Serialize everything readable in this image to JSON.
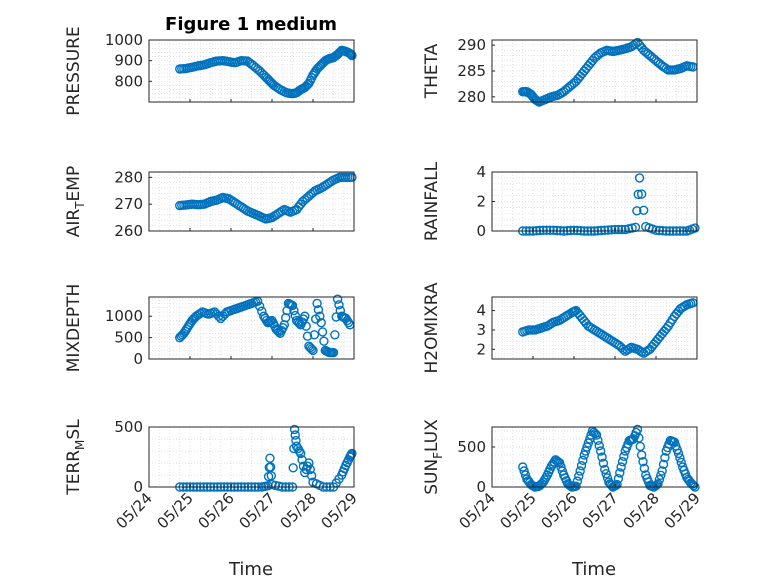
{
  "title": "Figure 1 medium",
  "marker_color": "#0072BD",
  "xlabel": "Time",
  "chart_data": [
    {
      "type": "scatter",
      "ylabel": "PRESSURE",
      "ylim": [
        700,
        1000
      ],
      "yticks": [
        800,
        900,
        1000
      ],
      "xlim": [
        0,
        5
      ],
      "x": [
        0.75,
        0.9,
        1.05,
        1.2,
        1.35,
        1.5,
        1.65,
        1.8,
        1.95,
        2.1,
        2.25,
        2.4,
        2.55,
        2.7,
        2.85,
        2.95,
        3.05,
        3.2,
        3.35,
        3.5,
        3.6,
        3.7,
        3.8,
        3.9,
        4.0,
        4.1,
        4.2,
        4.3,
        4.4,
        4.5,
        4.6,
        4.7,
        4.8,
        4.9,
        4.95
      ],
      "y": [
        860,
        862,
        868,
        875,
        880,
        890,
        898,
        900,
        895,
        890,
        900,
        898,
        875,
        850,
        820,
        800,
        780,
        760,
        745,
        740,
        745,
        760,
        770,
        790,
        830,
        860,
        880,
        900,
        910,
        915,
        930,
        950,
        945,
        935,
        925
      ]
    },
    {
      "type": "scatter",
      "ylabel": "THETA",
      "ylim": [
        279,
        291
      ],
      "yticks": [
        280,
        285,
        290
      ],
      "xlim": [
        0,
        5
      ],
      "x": [
        0.75,
        0.85,
        0.95,
        1.05,
        1.15,
        1.3,
        1.45,
        1.6,
        1.75,
        1.9,
        2.05,
        2.2,
        2.35,
        2.5,
        2.65,
        2.8,
        2.95,
        3.1,
        3.25,
        3.4,
        3.55,
        3.7,
        3.85,
        4.0,
        4.15,
        4.3,
        4.45,
        4.6,
        4.75,
        4.9
      ],
      "y": [
        281,
        281,
        280.5,
        279.5,
        279,
        279.5,
        280,
        280.3,
        281,
        282,
        283,
        284.5,
        286,
        287.5,
        288.5,
        289,
        288.8,
        289,
        289.3,
        289.7,
        290.5,
        289,
        288,
        287,
        286,
        285.2,
        285.2,
        285.5,
        286,
        285.8
      ]
    },
    {
      "type": "scatter",
      "ylabel": "AIR_TEMP",
      "ylim": [
        260,
        282
      ],
      "yticks": [
        260,
        270,
        280
      ],
      "xlim": [
        0,
        5
      ],
      "x": [
        0.75,
        0.9,
        1.05,
        1.2,
        1.35,
        1.5,
        1.65,
        1.8,
        1.95,
        2.1,
        2.25,
        2.4,
        2.55,
        2.7,
        2.85,
        3.0,
        3.15,
        3.3,
        3.45,
        3.6,
        3.75,
        3.9,
        4.05,
        4.2,
        4.35,
        4.5,
        4.65,
        4.8,
        4.95
      ],
      "y": [
        269.5,
        269.7,
        270,
        269.8,
        270,
        271,
        271.5,
        272.5,
        272,
        270.5,
        269,
        267.5,
        266.5,
        265.5,
        264.5,
        265,
        266.5,
        268,
        267,
        268,
        271,
        273,
        275,
        276,
        277.5,
        279,
        280,
        280,
        280
      ]
    },
    {
      "type": "scatter",
      "ylabel": "RAINFALL",
      "ylim": [
        0,
        4
      ],
      "yticks": [
        0,
        2,
        4
      ],
      "xlim": [
        0,
        5
      ],
      "x": [
        0.75,
        1.0,
        1.25,
        1.5,
        1.75,
        2.0,
        2.25,
        2.5,
        2.75,
        3.0,
        3.25,
        3.5,
        3.6,
        3.75,
        4.0,
        4.25,
        4.5,
        4.75,
        4.95
      ],
      "y": [
        0,
        0,
        0.05,
        0.05,
        0,
        0.05,
        0,
        0,
        0.05,
        0.1,
        0.1,
        0.25,
        3.6,
        0.3,
        0.05,
        0,
        0,
        0,
        0.2
      ]
    },
    {
      "type": "scatter",
      "ylabel": "MIXDEPTH",
      "ylim": [
        0,
        1450
      ],
      "yticks": [
        0,
        500,
        1000
      ],
      "xlim": [
        0,
        5
      ],
      "x": [
        0.75,
        0.85,
        0.95,
        1.05,
        1.15,
        1.3,
        1.45,
        1.6,
        1.75,
        1.9,
        2.05,
        2.2,
        2.35,
        2.5,
        2.65,
        2.8,
        2.9,
        3.0,
        3.1,
        3.2,
        3.3,
        3.4,
        3.5,
        3.6,
        3.7,
        3.8,
        3.9,
        4.0,
        4.1,
        4.2,
        4.3,
        4.4,
        4.5,
        4.6,
        4.7,
        4.8,
        4.9
      ],
      "y": [
        500,
        600,
        750,
        900,
        1000,
        1100,
        1050,
        1100,
        950,
        1100,
        1150,
        1200,
        1250,
        1300,
        1350,
        1000,
        850,
        900,
        700,
        600,
        800,
        1300,
        1250,
        900,
        800,
        1000,
        300,
        200,
        1300,
        850,
        200,
        150,
        150,
        1400,
        1000,
        950,
        800
      ]
    },
    {
      "type": "scatter",
      "ylabel": "H2OMIXRA",
      "ylim": [
        1.5,
        4.7
      ],
      "yticks": [
        2,
        3,
        4
      ],
      "xlim": [
        0,
        5
      ],
      "x": [
        0.75,
        0.9,
        1.05,
        1.2,
        1.35,
        1.5,
        1.65,
        1.8,
        1.95,
        2.05,
        2.2,
        2.35,
        2.5,
        2.65,
        2.8,
        2.95,
        3.1,
        3.25,
        3.4,
        3.55,
        3.7,
        3.85,
        4.0,
        4.15,
        4.3,
        4.45,
        4.6,
        4.75,
        4.9
      ],
      "y": [
        2.9,
        3.0,
        3.0,
        3.1,
        3.2,
        3.4,
        3.5,
        3.7,
        3.9,
        4.0,
        3.6,
        3.2,
        3.0,
        2.8,
        2.6,
        2.4,
        2.2,
        1.9,
        2.1,
        2.0,
        1.8,
        2.0,
        2.4,
        2.8,
        3.2,
        3.7,
        4.1,
        4.3,
        4.4
      ]
    },
    {
      "type": "scatter",
      "ylabel": "TERR_MSL",
      "ylim": [
        0,
        500
      ],
      "yticks": [
        0,
        500
      ],
      "xlim": [
        0,
        5
      ],
      "x": [
        0.75,
        1.0,
        1.25,
        1.5,
        1.75,
        2.0,
        2.25,
        2.5,
        2.75,
        2.9,
        2.95,
        3.0,
        3.25,
        3.5,
        3.55,
        3.6,
        3.7,
        3.8,
        3.9,
        4.0,
        4.25,
        4.5,
        4.7,
        4.8,
        4.9,
        4.95
      ],
      "y": [
        0,
        0,
        0,
        0,
        0,
        0,
        0,
        0,
        0,
        10,
        240,
        20,
        0,
        0,
        480,
        340,
        280,
        120,
        200,
        40,
        0,
        0,
        100,
        180,
        250,
        280
      ]
    },
    {
      "type": "scatter",
      "ylabel": "SUN_FLUX",
      "ylim": [
        0,
        750
      ],
      "yticks": [
        0,
        500
      ],
      "xlim": [
        0,
        5
      ],
      "x": [
        0.75,
        0.85,
        0.95,
        1.05,
        1.15,
        1.25,
        1.35,
        1.45,
        1.55,
        1.65,
        1.75,
        1.85,
        1.95,
        2.05,
        2.15,
        2.25,
        2.35,
        2.45,
        2.55,
        2.65,
        2.75,
        2.85,
        2.95,
        3.05,
        3.15,
        3.25,
        3.35,
        3.45,
        3.55,
        3.65,
        3.75,
        3.85,
        3.95,
        4.05,
        4.15,
        4.25,
        4.35,
        4.45,
        4.55,
        4.65,
        4.75,
        4.85,
        4.95
      ],
      "y": [
        250,
        100,
        30,
        0,
        10,
        60,
        150,
        260,
        340,
        300,
        150,
        40,
        0,
        10,
        200,
        400,
        550,
        700,
        650,
        450,
        220,
        60,
        0,
        30,
        250,
        450,
        580,
        600,
        720,
        400,
        150,
        20,
        0,
        40,
        200,
        450,
        580,
        560,
        420,
        250,
        120,
        50,
        0
      ]
    }
  ],
  "xticks": [
    "05/24",
    "05/25",
    "05/26",
    "05/27",
    "05/28",
    "05/29"
  ]
}
